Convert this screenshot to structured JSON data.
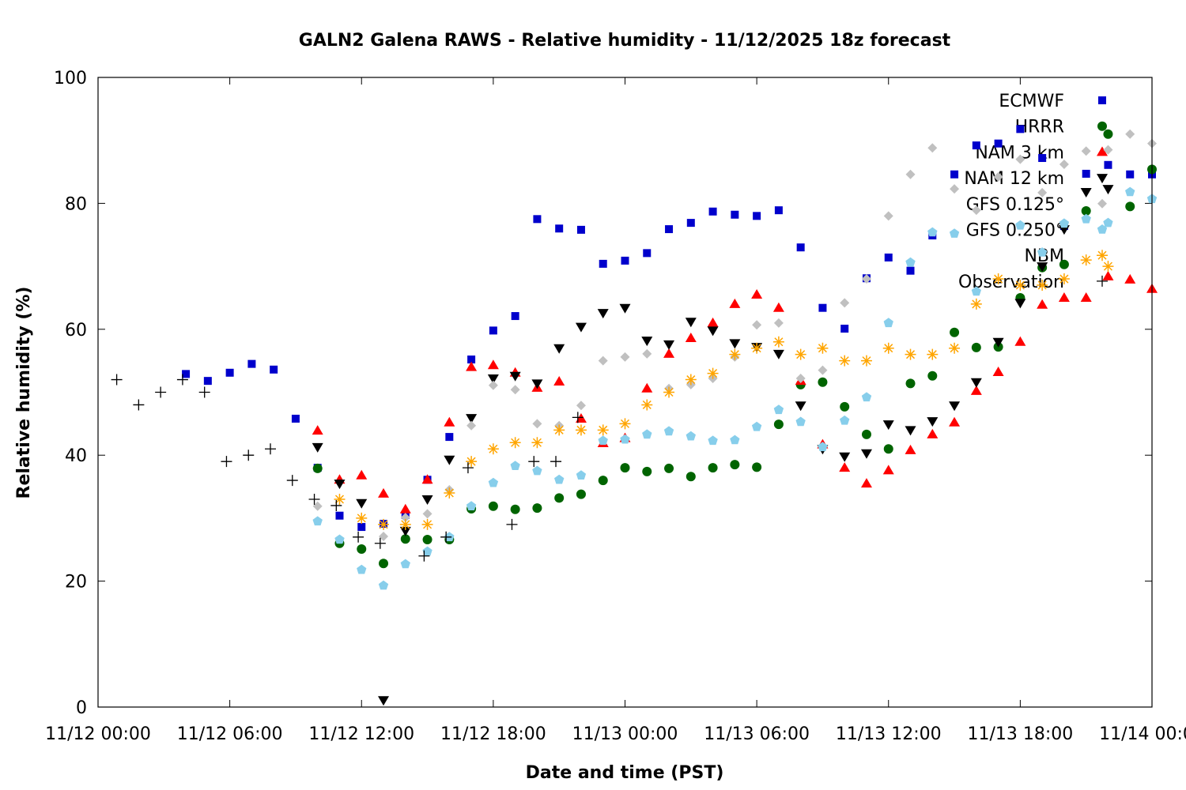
{
  "chart_data": {
    "type": "scatter",
    "title": "GALN2 Galena RAWS - Relative humidity - 11/12/2025 18z forecast",
    "xlabel": "Date and time (PST)",
    "ylabel": "Relative humidity (%)",
    "x_units": "hours since 11/12 00:00 PST",
    "xlim": [
      0,
      48
    ],
    "ylim": [
      0,
      100
    ],
    "x_ticks": [
      {
        "value": 0,
        "label": "11/12 00:00"
      },
      {
        "value": 6,
        "label": "11/12 06:00"
      },
      {
        "value": 12,
        "label": "11/12 12:00"
      },
      {
        "value": 18,
        "label": "11/12 18:00"
      },
      {
        "value": 24,
        "label": "11/13 00:00"
      },
      {
        "value": 30,
        "label": "11/13 06:00"
      },
      {
        "value": 36,
        "label": "11/13 12:00"
      },
      {
        "value": 42,
        "label": "11/13 18:00"
      },
      {
        "value": 48,
        "label": "11/14 00:00"
      }
    ],
    "y_ticks": [
      {
        "value": 0,
        "label": "0"
      },
      {
        "value": 20,
        "label": "20"
      },
      {
        "value": 40,
        "label": "40"
      },
      {
        "value": 60,
        "label": "60"
      },
      {
        "value": 80,
        "label": "80"
      },
      {
        "value": 100,
        "label": "100"
      }
    ],
    "grid": false,
    "legend_position": "top-right",
    "series": [
      {
        "name": "ECMWF",
        "marker": "square",
        "color": "#0000cc",
        "x_start": 4,
        "values": [
          52.9,
          51.8,
          53.1,
          54.5,
          53.6,
          45.8,
          38.0,
          30.4,
          28.6,
          29.1,
          30.5,
          36.1,
          42.9,
          55.2,
          59.8,
          62.1,
          77.5,
          76.0,
          75.8,
          70.4,
          70.9,
          72.1,
          75.9,
          76.9,
          78.7,
          78.2,
          78.0,
          78.9,
          73.0,
          63.4,
          60.1,
          68.1,
          71.4,
          69.3,
          74.9,
          84.6,
          89.2,
          89.5,
          91.8,
          87.2,
          76.4,
          84.7,
          86.1,
          84.6,
          84.6
        ]
      },
      {
        "name": "HRRR",
        "marker": "circle",
        "color": "#006400",
        "x_start": 10,
        "values": [
          37.9,
          26.0,
          25.1,
          22.8,
          26.7,
          26.6,
          26.6,
          31.5,
          31.9,
          31.4,
          31.6,
          33.2,
          33.8,
          36.0,
          38.0,
          37.4,
          37.9,
          36.6,
          38.0,
          38.5,
          38.1,
          44.9,
          51.2,
          51.6,
          47.7,
          43.3,
          41.0,
          51.4,
          52.6,
          59.5,
          57.1,
          57.2,
          65.0,
          69.8,
          70.3,
          78.8,
          91.0,
          79.5,
          85.4
        ]
      },
      {
        "name": "NAM 3 km",
        "marker": "triangle-up",
        "color": "#ff0000",
        "x_start": 10,
        "values": [
          43.9,
          36.1,
          36.8,
          33.9,
          31.4,
          36.1,
          45.2,
          54.0,
          54.3,
          53.1,
          50.7,
          51.7,
          45.8,
          41.9,
          42.7,
          50.6,
          56.1,
          58.6,
          61.0,
          64.0,
          65.5,
          63.4,
          51.8,
          41.7,
          38.0,
          35.5,
          37.6,
          40.8,
          43.3,
          45.2,
          50.2,
          53.2,
          58.0,
          63.9,
          65.0,
          65.0,
          68.4,
          67.9,
          66.4
        ]
      },
      {
        "name": "NAM 12 km",
        "marker": "triangle-down",
        "color": "#000000",
        "x_start": 10,
        "values": [
          41.3,
          35.5,
          32.4,
          1.1,
          28.0,
          33.0,
          39.3,
          45.9,
          52.2,
          52.6,
          51.4,
          57.0,
          60.4,
          62.6,
          63.4,
          58.2,
          57.6,
          61.2,
          59.8,
          57.8,
          57.2,
          56.1,
          47.9,
          41.0,
          39.8,
          40.3,
          44.9,
          44.0,
          45.4,
          47.9,
          51.6,
          58.0,
          64.2,
          70.0,
          75.9,
          81.8,
          82.3,
          null,
          null
        ]
      },
      {
        "name": "GFS 0.125°",
        "marker": "diamond",
        "color": "#c0c0c0",
        "x_start": 10,
        "values": [
          31.9,
          null,
          null,
          27.1,
          30.1,
          30.7,
          34.5,
          44.7,
          51.1,
          50.4,
          45.0,
          44.7,
          47.9,
          55.0,
          55.6,
          56.1,
          50.6,
          51.2,
          52.2,
          55.6,
          60.7,
          61.0,
          52.2,
          53.5,
          64.2,
          68.0,
          78.0,
          84.6,
          88.8,
          82.3,
          78.9,
          84.2,
          87.0,
          81.7,
          86.2,
          88.3,
          88.5,
          91.0,
          89.5
        ]
      },
      {
        "name": "GFS 0.250°",
        "marker": "pentagon",
        "color": "#87ceeb",
        "x_start": 10,
        "values": [
          29.5,
          26.6,
          21.8,
          19.3,
          22.7,
          24.7,
          27.0,
          31.9,
          35.6,
          38.3,
          37.5,
          36.1,
          36.8,
          42.3,
          42.5,
          43.3,
          43.8,
          43.0,
          42.3,
          42.4,
          44.5,
          47.2,
          45.3,
          41.3,
          45.5,
          49.2,
          61.0,
          70.6,
          75.4,
          75.2,
          66.0,
          null,
          76.5,
          72.2,
          76.8,
          77.5,
          76.9,
          81.8,
          80.7
        ]
      },
      {
        "name": "NBM",
        "marker": "star",
        "color": "#ffa500",
        "x_start": 11,
        "values": [
          33,
          30,
          29,
          29,
          29,
          34,
          39,
          41,
          42,
          42,
          44,
          44,
          44,
          45,
          48,
          50,
          52,
          53,
          56,
          57,
          58,
          56,
          57,
          55,
          55,
          57,
          56,
          56,
          57,
          64,
          68,
          67,
          67,
          68,
          71,
          70
        ]
      },
      {
        "name": "Observation",
        "marker": "plus",
        "color": "#000000",
        "x": [
          0.85,
          1.85,
          2.85,
          3.85,
          4.85,
          5.85,
          6.85,
          7.85,
          8.85,
          9.85,
          10.85,
          11.85,
          12.85,
          14.85,
          15.85,
          16.85,
          18.85,
          19.85,
          20.85,
          21.85
        ],
        "values": [
          52,
          48,
          50,
          52,
          50,
          39,
          40,
          41,
          36,
          33,
          32,
          27,
          26,
          24,
          27,
          38,
          29,
          39,
          39,
          46
        ]
      }
    ]
  }
}
